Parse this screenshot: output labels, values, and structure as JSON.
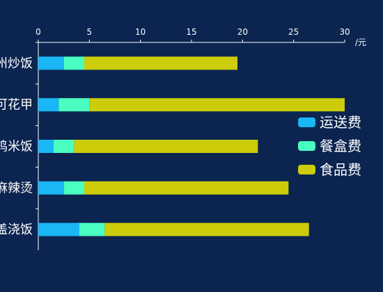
{
  "chart_data": {
    "type": "bar",
    "orientation": "horizontal",
    "stacked": true,
    "categories": [
      "扬州炒饭",
      "花甲",
      "鸡米饭",
      "麻辣烫",
      "卤肉浇饭"
    ],
    "category_labels": [
      "州炒饭",
      "可花甲",
      "鸡米饭",
      "麻辣烫",
      "盖浇饭"
    ],
    "series": [
      {
        "name": "运送费",
        "color": "#1ab6f5",
        "values": [
          2.5,
          2,
          1.5,
          2.5,
          4
        ]
      },
      {
        "name": "餐盒费",
        "color": "#4afdc0",
        "values": [
          2,
          3,
          2,
          2,
          2.5
        ]
      },
      {
        "name": "食品费",
        "color": "#cccc0a",
        "values": [
          15,
          25,
          18,
          20,
          20
        ]
      }
    ],
    "xlim": [
      0,
      30
    ],
    "x_ticks": [
      0,
      5,
      10,
      15,
      20,
      25,
      30
    ],
    "x_unit": "/元",
    "x_axis_position": "top",
    "grid": false,
    "legend_position": "right",
    "background": "#0b2450"
  }
}
